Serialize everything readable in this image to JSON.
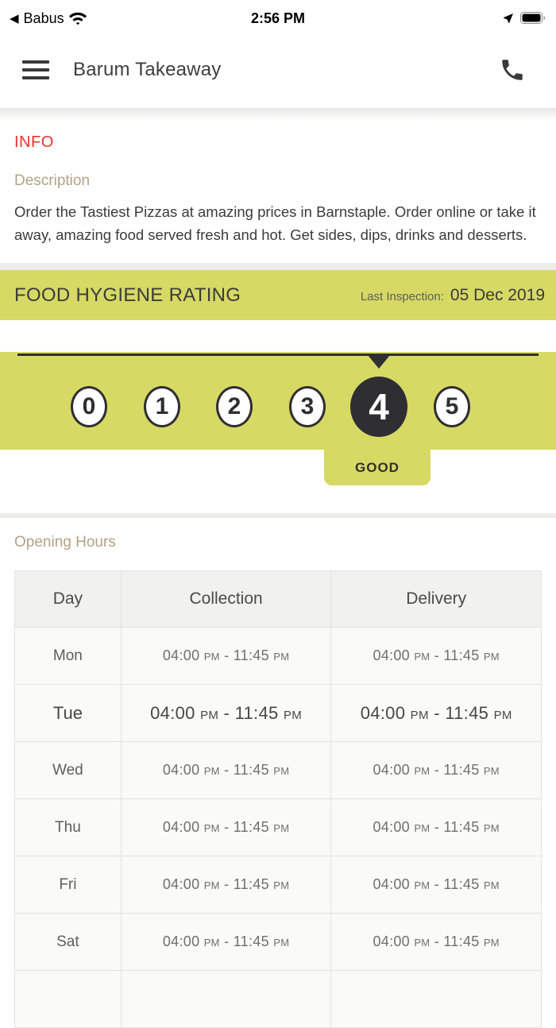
{
  "status_bar": {
    "back_app": "Babus",
    "back_glyph": "◀",
    "time": "2:56 PM"
  },
  "header": {
    "title": "Barum Takeaway"
  },
  "info": {
    "section_label": "INFO",
    "description_label": "Description",
    "description_text": "Order the Tastiest Pizzas at amazing prices in Barnstaple. Order online or take it away, amazing food served fresh and hot. Get sides, dips, drinks and desserts."
  },
  "hygiene": {
    "title": "FOOD HYGIENE RATING",
    "last_inspection_label": "Last Inspection:",
    "last_inspection_date": "05 Dec 2019",
    "scale": [
      "0",
      "1",
      "2",
      "3",
      "4",
      "5"
    ],
    "rating": "4",
    "rating_text": "GOOD",
    "accent_color": "#d6d964",
    "selected_color": "#2f2e32"
  },
  "hours": {
    "section_label": "Opening Hours",
    "columns": [
      "Day",
      "Collection",
      "Delivery"
    ],
    "rows": [
      {
        "day": "Mon",
        "collection": "04:00 PM - 11:45 PM",
        "delivery": "04:00 PM - 11:45 PM",
        "today": false
      },
      {
        "day": "Tue",
        "collection": "04:00 PM - 11:45 PM",
        "delivery": "04:00 PM - 11:45 PM",
        "today": true
      },
      {
        "day": "Wed",
        "collection": "04:00 PM - 11:45 PM",
        "delivery": "04:00 PM - 11:45 PM",
        "today": false
      },
      {
        "day": "Thu",
        "collection": "04:00 PM - 11:45 PM",
        "delivery": "04:00 PM - 11:45 PM",
        "today": false
      },
      {
        "day": "Fri",
        "collection": "04:00 PM - 11:45 PM",
        "delivery": "04:00 PM - 11:45 PM",
        "today": false
      },
      {
        "day": "Sat",
        "collection": "04:00 PM - 11:45 PM",
        "delivery": "04:00 PM - 11:45 PM",
        "today": false
      }
    ]
  }
}
